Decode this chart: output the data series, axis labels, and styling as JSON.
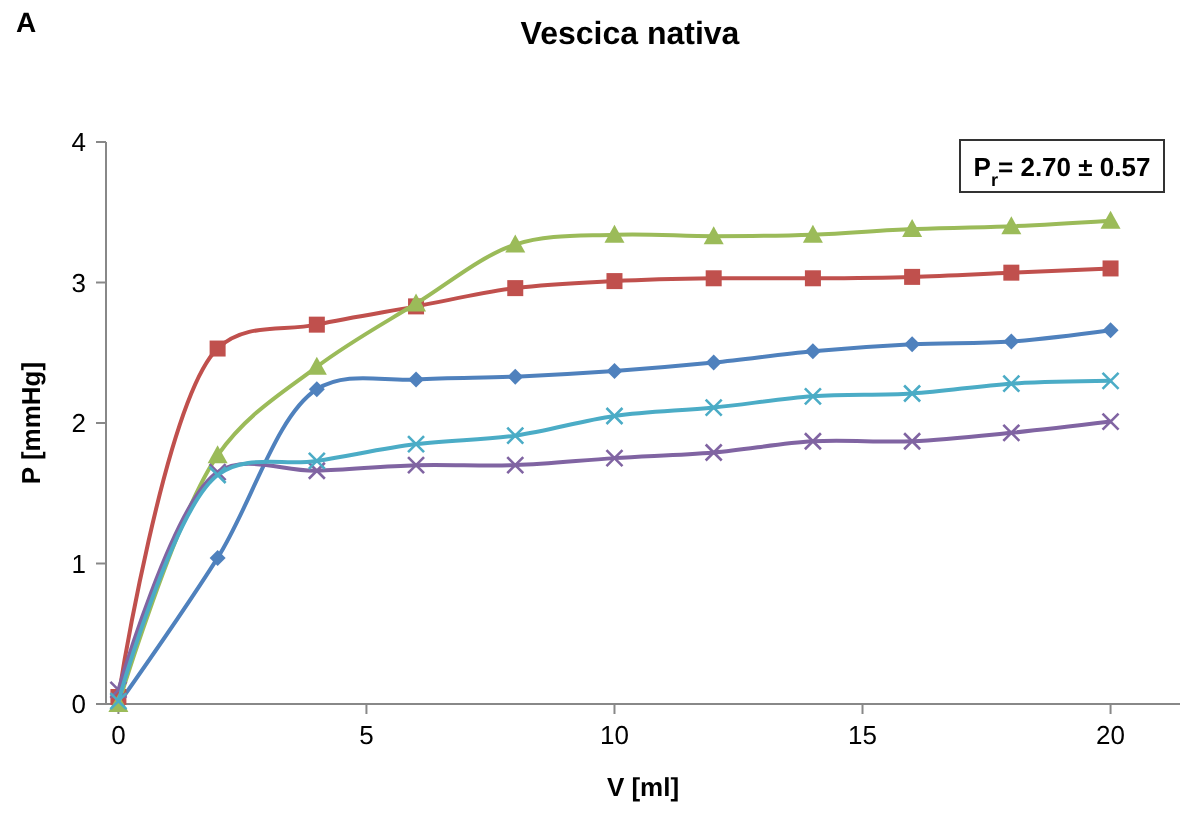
{
  "chart_data": {
    "type": "line",
    "title": "Vescica nativa",
    "xlabel": "V [ml]",
    "ylabel": "P [mmHg]",
    "annotations": [
      "A",
      "P$_{r}$= 2.70 ± 0.57"
    ],
    "x": [
      0,
      2,
      4,
      6,
      8,
      10,
      12,
      14,
      16,
      18,
      20
    ],
    "xlim": [
      -0.25,
      21.4
    ],
    "xticks": [
      0,
      5,
      10,
      15,
      20
    ],
    "ylim": [
      0,
      4
    ],
    "yticks": [
      0,
      1,
      2,
      3,
      4
    ],
    "grid": false,
    "series": [
      {
        "color": "#4f81bd",
        "marker": "diamond",
        "values": [
          0,
          1.04,
          2.24,
          2.31,
          2.33,
          2.37,
          2.43,
          2.51,
          2.56,
          2.58,
          2.66
        ]
      },
      {
        "color": "#c0504d",
        "marker": "square",
        "values": [
          0.05,
          2.53,
          2.7,
          2.83,
          2.96,
          3.01,
          3.03,
          3.03,
          3.04,
          3.07,
          3.1
        ]
      },
      {
        "color": "#9bbb59",
        "marker": "triangle",
        "values": [
          0,
          1.77,
          2.4,
          2.85,
          3.27,
          3.34,
          3.33,
          3.34,
          3.38,
          3.4,
          3.44
        ]
      },
      {
        "color": "#8064a2",
        "marker": "cross",
        "values": [
          0.1,
          1.65,
          1.66,
          1.7,
          1.7,
          1.75,
          1.79,
          1.87,
          1.87,
          1.93,
          2.01
        ]
      },
      {
        "color": "#4bacc6",
        "marker": "cross",
        "values": [
          0.02,
          1.63,
          1.73,
          1.85,
          1.91,
          2.05,
          2.11,
          2.19,
          2.21,
          2.28,
          2.3
        ]
      }
    ]
  }
}
